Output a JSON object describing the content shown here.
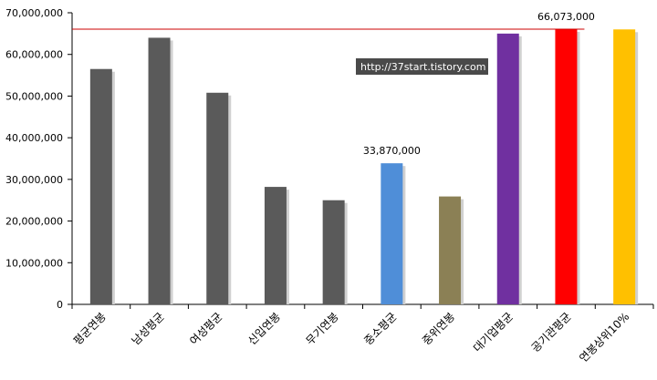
{
  "chart_data": {
    "type": "bar",
    "categories": [
      "평균연봉",
      "남성평균",
      "여성평균",
      "신입연봉",
      "무기연봉",
      "중소평균",
      "중위연봉",
      "대기업평균",
      "공기관평균",
      "연봉상위10%"
    ],
    "values": [
      56500000,
      64000000,
      50800000,
      28200000,
      25000000,
      33870000,
      25900000,
      65000000,
      66073000,
      66000000
    ],
    "bar_colors": [
      "#5a5a5a",
      "#5a5a5a",
      "#5a5a5a",
      "#5a5a5a",
      "#5a5a5a",
      "#4f8ed8",
      "#8b8055",
      "#7030a0",
      "#ff0000",
      "#ffc000"
    ],
    "data_labels": [
      {
        "index": 5,
        "text": "33,870,000"
      },
      {
        "index": 8,
        "text": "66,073,000"
      }
    ],
    "yticks": [
      "0",
      "10,000,000",
      "20,000,000",
      "30,000,000",
      "40,000,000",
      "50,000,000",
      "60,000,000",
      "70,000,000"
    ],
    "ylim": [
      0,
      70000000
    ],
    "reference_line": {
      "value": 66073000,
      "color": "#cc0000"
    },
    "grid": false,
    "watermark": "http://37start.tistory.com"
  }
}
